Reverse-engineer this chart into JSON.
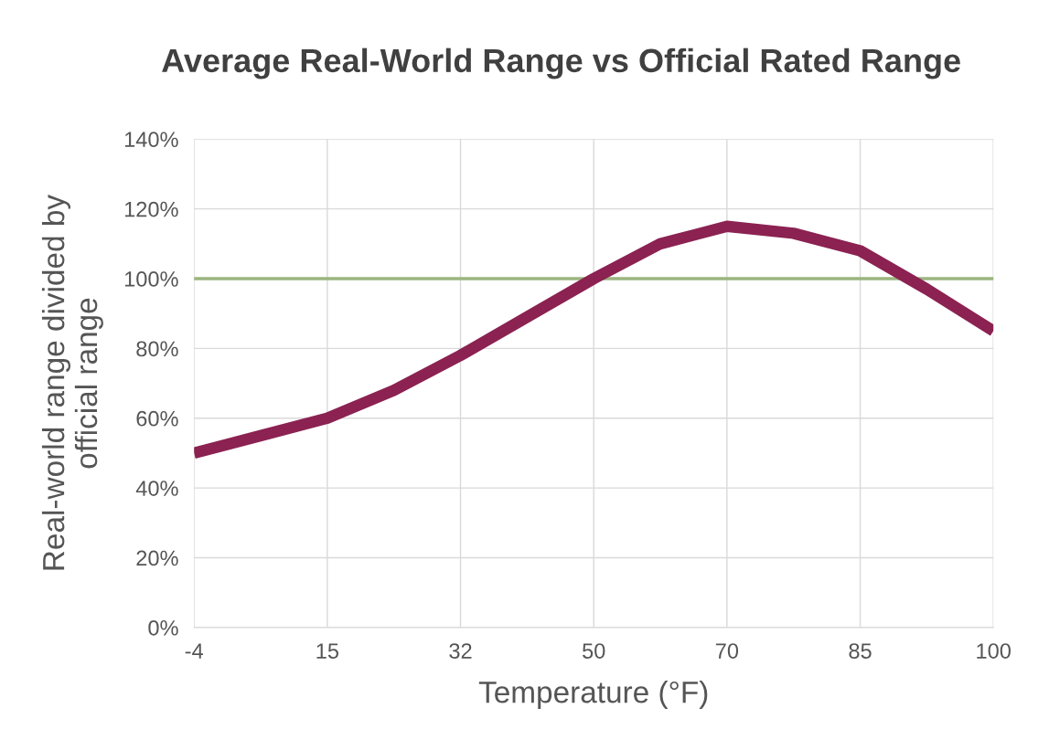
{
  "chart_data": {
    "type": "line",
    "title": "Average Real-World Range vs Official Rated Range",
    "xlabel": "Temperature (°F)",
    "ylabel": "Real-world range divided by\nofficial range",
    "categories": [
      "-4",
      null,
      "15",
      null,
      "32",
      null,
      "50",
      null,
      "70",
      null,
      "85",
      null,
      "100"
    ],
    "series": [
      {
        "color": "#8b2252",
        "values": [
          50,
          55,
          60,
          68,
          78,
          89,
          100,
          110,
          115,
          113,
          108,
          97,
          85
        ]
      }
    ],
    "ylim": [
      0,
      140
    ],
    "yticks": [
      {
        "value": 0,
        "label": "0%"
      },
      {
        "value": 20,
        "label": "20%"
      },
      {
        "value": 40,
        "label": "40%"
      },
      {
        "value": 60,
        "label": "60%"
      },
      {
        "value": 80,
        "label": "80%"
      },
      {
        "value": 100,
        "label": "100%"
      },
      {
        "value": 120,
        "label": "120%"
      },
      {
        "value": 140,
        "label": "140%"
      }
    ],
    "ref_lines": [
      {
        "axis": "y",
        "value": 100,
        "color": "#9bb57f"
      }
    ],
    "grid": true,
    "marker": "none",
    "line_style": "solid"
  }
}
